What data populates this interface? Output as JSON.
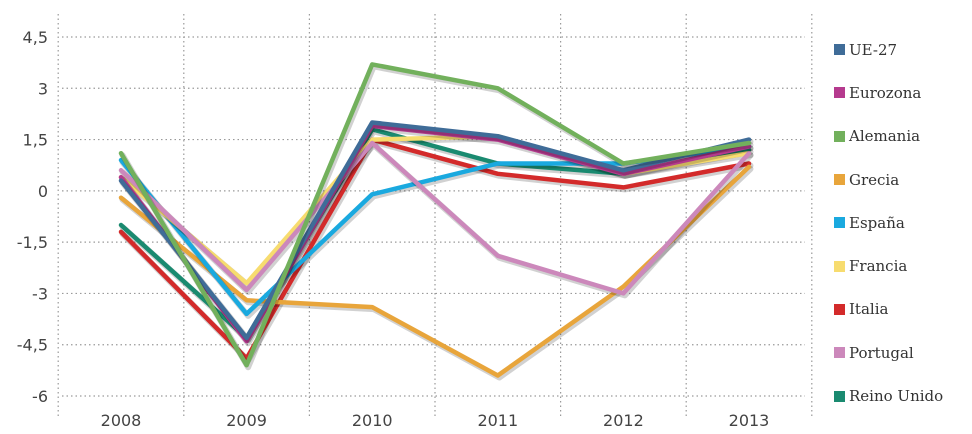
{
  "chart_data": {
    "type": "line",
    "categories": [
      "2008",
      "2009",
      "2010",
      "2011",
      "2012",
      "2013"
    ],
    "y_ticks": [
      "4,5",
      "3",
      "1,5",
      "0",
      "-1,5",
      "-3",
      "-4,5",
      "-6"
    ],
    "y_tick_values": [
      4.5,
      3,
      1.5,
      0,
      -1.5,
      -3,
      -4.5,
      -6
    ],
    "ylim": [
      -6,
      4.5
    ],
    "grid": true,
    "legend_position": "right",
    "series": [
      {
        "name": "Italia",
        "color": "#d32a2a",
        "values": [
          -1.2,
          -4.9,
          1.5,
          0.5,
          0.1,
          0.8
        ]
      },
      {
        "name": "Reino Unido",
        "color": "#1a8a70",
        "values": [
          -1.0,
          -4.3,
          1.8,
          0.8,
          0.5,
          1.2
        ]
      },
      {
        "name": "Grecia",
        "color": "#e8a53b",
        "values": [
          -0.2,
          -3.2,
          -3.4,
          -5.4,
          -2.8,
          0.7
        ]
      },
      {
        "name": "España",
        "color": "#1aa9df",
        "values": [
          0.9,
          -3.6,
          -0.1,
          0.8,
          0.8,
          1.3
        ]
      },
      {
        "name": "Francia",
        "color": "#f7dc6f",
        "values": [
          0.4,
          -2.7,
          1.5,
          1.6,
          0.5,
          1.1
        ]
      },
      {
        "name": "Portugal",
        "color": "#cc88bb",
        "values": [
          0.6,
          -2.9,
          1.4,
          -1.9,
          -3.0,
          1.1
        ]
      },
      {
        "name": "Eurozona",
        "color": "#b53a8e",
        "values": [
          0.4,
          -4.4,
          1.9,
          1.5,
          0.5,
          1.3
        ]
      },
      {
        "name": "UE-27",
        "color": "#3f6c98",
        "values": [
          0.3,
          -4.3,
          2.0,
          1.6,
          0.6,
          1.5
        ]
      },
      {
        "name": "Alemania",
        "color": "#72b05c",
        "values": [
          1.1,
          -5.1,
          3.7,
          3.0,
          0.8,
          1.4
        ]
      }
    ],
    "legend_order": [
      "UE-27",
      "Eurozona",
      "Alemania",
      "Grecia",
      "España",
      "Francia",
      "Italia",
      "Portugal",
      "Reino Unido"
    ]
  }
}
